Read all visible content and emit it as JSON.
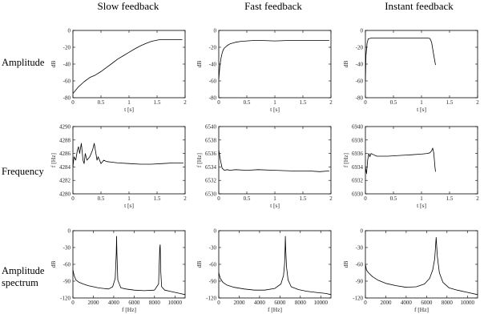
{
  "column_titles": [
    "Slow feedback",
    "Fast feedback",
    "Instant feedback"
  ],
  "row_labels": [
    [
      "Amplitude"
    ],
    [
      "Frequency"
    ],
    [
      "Amplitude",
      "spectrum"
    ]
  ],
  "chart_data": [
    {
      "id": "amp-slow",
      "type": "line",
      "xlabel": "t [s]",
      "ylabel": "dB",
      "xlim": [
        0,
        2
      ],
      "ylim": [
        -80,
        0
      ],
      "xticks": [
        0,
        0.5,
        1,
        1.5,
        2
      ],
      "xticklabels": [
        "0",
        "0.5",
        "1",
        "1.5",
        "2"
      ],
      "yticks": [
        -80,
        -60,
        -40,
        -20,
        0
      ],
      "yticklabels": [
        "-80",
        "-60",
        "-40",
        "-20",
        "0"
      ],
      "x": [
        0,
        0.05,
        0.1,
        0.2,
        0.3,
        0.4,
        0.5,
        0.6,
        0.7,
        0.8,
        0.9,
        1.0,
        1.1,
        1.2,
        1.3,
        1.4,
        1.5,
        1.55,
        1.6,
        1.7,
        1.8,
        1.9,
        1.95
      ],
      "y": [
        -75,
        -71,
        -67,
        -61,
        -56,
        -53,
        -49,
        -44,
        -39,
        -34,
        -30,
        -26,
        -22,
        -18.5,
        -15.5,
        -13,
        -11.5,
        -11,
        -11,
        -11,
        -11,
        -11,
        -11
      ]
    },
    {
      "id": "amp-fast",
      "type": "line",
      "xlabel": "t [s]",
      "ylabel": "dB",
      "xlim": [
        0,
        2
      ],
      "ylim": [
        -80,
        0
      ],
      "xticks": [
        0,
        0.5,
        1,
        1.5,
        2
      ],
      "xticklabels": [
        "0",
        "0.5",
        "1",
        "1.5",
        "2"
      ],
      "yticks": [
        -80,
        -60,
        -40,
        -20,
        0
      ],
      "yticklabels": [
        "-80",
        "-60",
        "-40",
        "-20",
        "0"
      ],
      "x": [
        0,
        0.02,
        0.04,
        0.06,
        0.08,
        0.1,
        0.15,
        0.2,
        0.25,
        0.3,
        0.4,
        0.5,
        0.6,
        0.8,
        1.0,
        1.2,
        1.4,
        1.6,
        1.8,
        1.97
      ],
      "y": [
        -58,
        -42,
        -33,
        -27,
        -23,
        -21,
        -18,
        -16,
        -15,
        -14,
        -13,
        -12.5,
        -12,
        -12,
        -12.5,
        -12,
        -12,
        -12,
        -12,
        -12
      ]
    },
    {
      "id": "amp-instant",
      "type": "line",
      "xlabel": "t [s]",
      "ylabel": "dB",
      "xlim": [
        0,
        2
      ],
      "ylim": [
        -80,
        0
      ],
      "xticks": [
        0,
        0.5,
        1,
        1.5,
        2
      ],
      "xticklabels": [
        "0",
        "0.5",
        "1",
        "1.5",
        "2"
      ],
      "yticks": [
        -80,
        -60,
        -40,
        -20,
        0
      ],
      "yticklabels": [
        "-80",
        "-60",
        "-40",
        "-20",
        "0"
      ],
      "x": [
        0,
        0.01,
        0.03,
        0.05,
        0.08,
        0.1,
        0.3,
        0.5,
        0.7,
        0.9,
        1.0,
        1.1,
        1.15,
        1.18,
        1.22,
        1.25
      ],
      "y": [
        -60,
        -30,
        -15,
        -10,
        -9.5,
        -9,
        -9,
        -9,
        -9,
        -9,
        -9,
        -9,
        -9.5,
        -14,
        -30,
        -41
      ]
    },
    {
      "id": "freq-slow",
      "type": "line",
      "xlabel": "t [s]",
      "ylabel": "f [Hz]",
      "xlim": [
        0,
        2
      ],
      "ylim": [
        4280,
        4290
      ],
      "xticks": [
        0,
        0.5,
        1,
        1.5,
        2
      ],
      "xticklabels": [
        "0",
        "0.5",
        "1",
        "1.5",
        "2"
      ],
      "yticks": [
        4280,
        4282,
        4284,
        4286,
        4288,
        4290
      ],
      "yticklabels": [
        "4280",
        "4282",
        "4284",
        "4286",
        "4288",
        "4290"
      ],
      "x": [
        0,
        0.02,
        0.05,
        0.08,
        0.1,
        0.12,
        0.15,
        0.18,
        0.2,
        0.22,
        0.25,
        0.3,
        0.35,
        0.38,
        0.4,
        0.43,
        0.45,
        0.5,
        0.55,
        0.6,
        0.7,
        0.8,
        1.0,
        1.2,
        1.4,
        1.6,
        1.8,
        1.97
      ],
      "y": [
        4284,
        4285.5,
        4285,
        4286.5,
        4287,
        4286,
        4287.5,
        4285,
        4284.5,
        4286,
        4285,
        4285.5,
        4286.5,
        4287.5,
        4286.5,
        4285,
        4285.5,
        4284.5,
        4285,
        4284.8,
        4284.7,
        4284.6,
        4284.5,
        4284.4,
        4284.4,
        4284.5,
        4284.6,
        4284.6
      ]
    },
    {
      "id": "freq-fast",
      "type": "line",
      "xlabel": "t [s]",
      "ylabel": "f [Hz]",
      "xlim": [
        0,
        2
      ],
      "ylim": [
        6530,
        6540
      ],
      "xticks": [
        0,
        0.5,
        1,
        1.5,
        2
      ],
      "xticklabels": [
        "0",
        "0.5",
        "1",
        "1.5",
        "2"
      ],
      "yticks": [
        6530,
        6532,
        6534,
        6536,
        6538,
        6540
      ],
      "yticklabels": [
        "6530",
        "6532",
        "6534",
        "6536",
        "6538",
        "6540"
      ],
      "x": [
        0,
        0.03,
        0.06,
        0.1,
        0.15,
        0.2,
        0.3,
        0.5,
        0.7,
        1.0,
        1.3,
        1.6,
        1.8,
        1.97
      ],
      "y": [
        6536.5,
        6535,
        6533.8,
        6533.5,
        6533.6,
        6533.5,
        6533.6,
        6533.5,
        6533.6,
        6533.5,
        6533.4,
        6533.4,
        6533.3,
        6533.4
      ]
    },
    {
      "id": "freq-instant",
      "type": "line",
      "xlabel": "t [s]",
      "ylabel": "f [Hz]",
      "xlim": [
        0,
        2
      ],
      "ylim": [
        6930,
        6940
      ],
      "xticks": [
        0,
        0.5,
        1,
        1.5,
        2
      ],
      "xticklabels": [
        "0",
        "0.5",
        "1",
        "1.5",
        "2"
      ],
      "yticks": [
        6930,
        6932,
        6934,
        6936,
        6938,
        6940
      ],
      "yticklabels": [
        "6930",
        "6932",
        "6934",
        "6936",
        "6938",
        "6940"
      ],
      "x": [
        0,
        0.02,
        0.04,
        0.06,
        0.08,
        0.1,
        0.15,
        0.2,
        0.4,
        0.6,
        0.8,
        1.0,
        1.1,
        1.15,
        1.18,
        1.2,
        1.22,
        1.24,
        1.25
      ],
      "y": [
        6934,
        6933,
        6935,
        6936,
        6935.5,
        6936,
        6935.8,
        6935.6,
        6935.6,
        6935.7,
        6935.8,
        6935.9,
        6936,
        6936.1,
        6936.4,
        6936.8,
        6936,
        6934,
        6933.3
      ]
    },
    {
      "id": "spec-slow",
      "type": "line",
      "xlabel": "f [Hz]",
      "ylabel": "dB",
      "xlim": [
        0,
        11000
      ],
      "ylim": [
        -120,
        0
      ],
      "xticks": [
        0,
        2000,
        4000,
        6000,
        8000,
        10000
      ],
      "xticklabels": [
        "0",
        "2000",
        "4000",
        "6000",
        "8000",
        "10000"
      ],
      "yticks": [
        -120,
        -90,
        -60,
        -30,
        0
      ],
      "yticklabels": [
        "-120",
        "-90",
        "-60",
        "-30",
        "0"
      ],
      "x": [
        0,
        120,
        300,
        600,
        1000,
        1500,
        2000,
        2500,
        3000,
        3500,
        3900,
        4150,
        4250,
        4280,
        4310,
        4400,
        4700,
        5200,
        6000,
        7000,
        8000,
        8400,
        8520,
        8560,
        8600,
        8700,
        9000,
        9500,
        10000,
        10500,
        11000
      ],
      "y": [
        -70,
        -80,
        -88,
        -92,
        -95,
        -98,
        -100,
        -102,
        -103,
        -104,
        -100,
        -85,
        -40,
        -10,
        -40,
        -88,
        -102,
        -104,
        -106,
        -107,
        -106,
        -95,
        -30,
        -25,
        -70,
        -100,
        -106,
        -108,
        -110,
        -112,
        -114
      ]
    },
    {
      "id": "spec-fast",
      "type": "line",
      "xlabel": "f [Hz]",
      "ylabel": "dB",
      "xlim": [
        0,
        11000
      ],
      "ylim": [
        -120,
        0
      ],
      "xticks": [
        0,
        2000,
        4000,
        6000,
        8000,
        10000
      ],
      "xticklabels": [
        "0",
        "2000",
        "4000",
        "6000",
        "8000",
        "10000"
      ],
      "yticks": [
        -120,
        -90,
        -60,
        -30,
        0
      ],
      "yticklabels": [
        "-120",
        "-90",
        "-60",
        "-30",
        "0"
      ],
      "x": [
        0,
        150,
        400,
        800,
        1500,
        2500,
        3500,
        4500,
        5500,
        6100,
        6350,
        6450,
        6500,
        6533,
        6570,
        6650,
        6800,
        7100,
        7800,
        8600,
        9500,
        10500,
        11000
      ],
      "y": [
        -75,
        -85,
        -92,
        -97,
        -101,
        -104,
        -106,
        -106,
        -103,
        -95,
        -80,
        -60,
        -35,
        -10,
        -35,
        -65,
        -88,
        -100,
        -105,
        -108,
        -110,
        -112,
        -114
      ]
    },
    {
      "id": "spec-instant",
      "type": "line",
      "xlabel": "f [Hz]",
      "ylabel": "dB",
      "xlim": [
        0,
        11000
      ],
      "ylim": [
        -120,
        0
      ],
      "xticks": [
        0,
        2000,
        4000,
        6000,
        8000,
        10000
      ],
      "xticklabels": [
        "0",
        "2000",
        "4000",
        "6000",
        "8000",
        "10000"
      ],
      "yticks": [
        -120,
        -90,
        -60,
        -30,
        0
      ],
      "yticklabels": [
        "-120",
        "-90",
        "-60",
        "-30",
        "0"
      ],
      "x": [
        0,
        100,
        300,
        700,
        1200,
        2000,
        3000,
        4000,
        5000,
        5800,
        6300,
        6600,
        6800,
        6936,
        7050,
        7250,
        7600,
        8200,
        9000,
        10000,
        11000
      ],
      "y": [
        -60,
        -70,
        -75,
        -82,
        -88,
        -94,
        -98,
        -101,
        -100,
        -95,
        -85,
        -70,
        -50,
        -12,
        -45,
        -75,
        -92,
        -102,
        -106,
        -110,
        -114
      ]
    }
  ]
}
